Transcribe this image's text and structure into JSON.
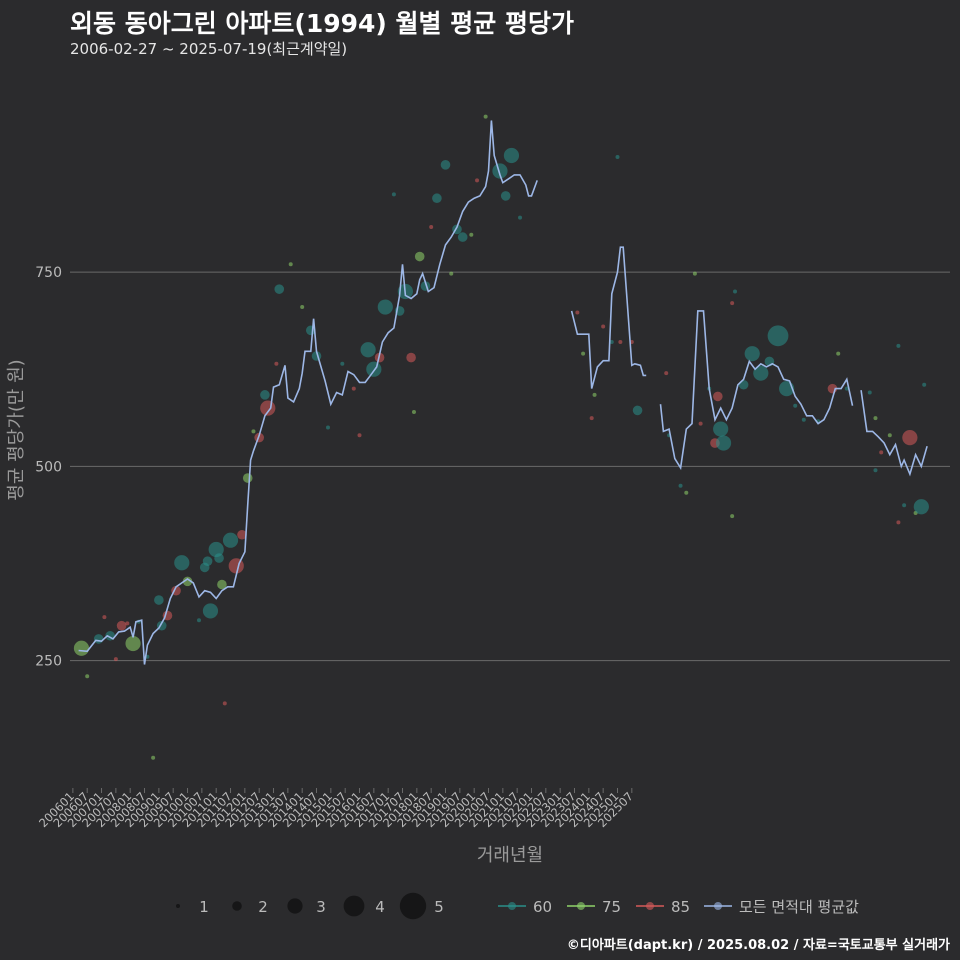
{
  "header": {
    "title": "외동 동아그린 아파트(1994) 월별 평균 평당가",
    "subtitle": "2006-02-27 ~ 2025-07-19(최근계약일)"
  },
  "footer": {
    "credit": "©디아파트(dapt.kr) / 2025.08.02 / 자료=국토교통부 실거래가"
  },
  "colors": {
    "background": "#2b2b2d",
    "grid": "#6a6a6a",
    "area_60": "#2a8f8a",
    "area_75": "#8fd36a",
    "area_85": "#d65a5a",
    "average_line": "#9db7e6",
    "text_dim": "#bbbbbb"
  },
  "chart_data": {
    "type": "line+scatter",
    "xlabel": "거래년월",
    "ylabel": "평균 평당가(만 원)",
    "ylim": [
      90,
      1010
    ],
    "yticks": [
      250,
      500,
      750
    ],
    "xticks": [
      "200601",
      "200607",
      "200701",
      "200707",
      "200801",
      "200807",
      "200901",
      "200907",
      "201001",
      "201007",
      "201101",
      "201107",
      "201201",
      "201207",
      "201301",
      "201307",
      "201401",
      "201407",
      "201501",
      "201507",
      "201601",
      "201607",
      "201701",
      "201707",
      "201801",
      "201807",
      "201901",
      "201907",
      "202001",
      "202007",
      "202101",
      "202107",
      "202201",
      "202207",
      "202301",
      "202307",
      "202401",
      "202407",
      "202501",
      "202507"
    ],
    "size_legend": {
      "title": "",
      "values": [
        1,
        2,
        3,
        4,
        5
      ]
    },
    "color_legend": [
      {
        "key": "60",
        "label": "60"
      },
      {
        "key": "75",
        "label": "75"
      },
      {
        "key": "85",
        "label": "85"
      },
      {
        "key": "avg",
        "label": "모든 면적대 평균값"
      }
    ],
    "average_line": [
      [
        2006.2,
        263
      ],
      [
        2006.5,
        262
      ],
      [
        2006.8,
        276
      ],
      [
        2007.0,
        275
      ],
      [
        2007.2,
        282
      ],
      [
        2007.4,
        278
      ],
      [
        2007.6,
        287
      ],
      [
        2007.8,
        288
      ],
      [
        2008.0,
        293
      ],
      [
        2008.1,
        280
      ],
      [
        2008.2,
        300
      ],
      [
        2008.4,
        302
      ],
      [
        2008.5,
        245
      ],
      [
        2008.6,
        270
      ],
      [
        2008.8,
        285
      ],
      [
        2009.0,
        292
      ],
      [
        2009.2,
        305
      ],
      [
        2009.4,
        330
      ],
      [
        2009.6,
        345
      ],
      [
        2009.8,
        350
      ],
      [
        2010.0,
        355
      ],
      [
        2010.2,
        350
      ],
      [
        2010.4,
        332
      ],
      [
        2010.6,
        340
      ],
      [
        2010.8,
        338
      ],
      [
        2011.0,
        330
      ],
      [
        2011.2,
        340
      ],
      [
        2011.4,
        345
      ],
      [
        2011.6,
        345
      ],
      [
        2011.8,
        375
      ],
      [
        2012.0,
        390
      ],
      [
        2012.1,
        450
      ],
      [
        2012.2,
        508
      ],
      [
        2012.3,
        520
      ],
      [
        2012.5,
        540
      ],
      [
        2012.7,
        565
      ],
      [
        2012.9,
        575
      ],
      [
        2013.0,
        602
      ],
      [
        2013.2,
        605
      ],
      [
        2013.4,
        630
      ],
      [
        2013.5,
        588
      ],
      [
        2013.7,
        583
      ],
      [
        2013.9,
        600
      ],
      [
        2014.0,
        620
      ],
      [
        2014.1,
        648
      ],
      [
        2014.3,
        648
      ],
      [
        2014.4,
        690
      ],
      [
        2014.5,
        648
      ],
      [
        2014.6,
        635
      ],
      [
        2014.8,
        610
      ],
      [
        2015.0,
        580
      ],
      [
        2015.2,
        595
      ],
      [
        2015.4,
        592
      ],
      [
        2015.6,
        622
      ],
      [
        2015.8,
        618
      ],
      [
        2016.0,
        608
      ],
      [
        2016.2,
        608
      ],
      [
        2016.4,
        618
      ],
      [
        2016.6,
        628
      ],
      [
        2016.8,
        660
      ],
      [
        2017.0,
        672
      ],
      [
        2017.2,
        678
      ],
      [
        2017.4,
        720
      ],
      [
        2017.5,
        760
      ],
      [
        2017.6,
        720
      ],
      [
        2017.8,
        716
      ],
      [
        2018.0,
        722
      ],
      [
        2018.1,
        740
      ],
      [
        2018.2,
        748
      ],
      [
        2018.4,
        725
      ],
      [
        2018.6,
        730
      ],
      [
        2018.8,
        760
      ],
      [
        2019.0,
        785
      ],
      [
        2019.2,
        795
      ],
      [
        2019.4,
        808
      ],
      [
        2019.6,
        828
      ],
      [
        2019.8,
        840
      ],
      [
        2020.0,
        845
      ],
      [
        2020.2,
        848
      ],
      [
        2020.4,
        860
      ],
      [
        2020.5,
        880
      ],
      [
        2020.6,
        945
      ],
      [
        2020.7,
        900
      ],
      [
        2020.9,
        875
      ],
      [
        2021.0,
        865
      ],
      [
        2021.2,
        870
      ],
      [
        2021.4,
        875
      ],
      [
        2021.6,
        875
      ],
      [
        2021.8,
        862
      ],
      [
        2021.9,
        848
      ],
      [
        2022.0,
        848
      ],
      [
        2022.2,
        868
      ]
    ],
    "average_line_b": [
      [
        2023.4,
        700
      ],
      [
        2023.6,
        670
      ],
      [
        2023.8,
        670
      ],
      [
        2024.0,
        670
      ],
      [
        2024.1,
        600
      ],
      [
        2024.3,
        628
      ],
      [
        2024.5,
        636
      ],
      [
        2024.7,
        636
      ],
      [
        2024.8,
        722
      ],
      [
        2025.0,
        750
      ],
      [
        2025.1,
        782
      ],
      [
        2025.2,
        782
      ],
      [
        2025.4,
        680
      ],
      [
        2025.5,
        630
      ],
      [
        2025.6,
        632
      ],
      [
        2025.8,
        630
      ],
      [
        2025.9,
        617
      ],
      [
        2026.0,
        617
      ]
    ],
    "average_line_c": [
      [
        2026.5,
        580
      ],
      [
        2026.6,
        545
      ],
      [
        2026.8,
        548
      ],
      [
        2027.0,
        510
      ],
      [
        2027.2,
        498
      ],
      [
        2027.4,
        548
      ],
      [
        2027.6,
        555
      ],
      [
        2027.8,
        700
      ],
      [
        2028.0,
        700
      ],
      [
        2028.2,
        600
      ],
      [
        2028.4,
        560
      ],
      [
        2028.6,
        575
      ],
      [
        2028.8,
        560
      ],
      [
        2029.0,
        575
      ],
      [
        2029.2,
        605
      ],
      [
        2029.4,
        612
      ],
      [
        2029.6,
        635
      ],
      [
        2029.8,
        625
      ],
      [
        2030.0,
        632
      ],
      [
        2030.2,
        628
      ],
      [
        2030.4,
        632
      ],
      [
        2030.6,
        628
      ],
      [
        2030.8,
        612
      ],
      [
        2031.0,
        610
      ],
      [
        2031.2,
        590
      ],
      [
        2031.4,
        580
      ],
      [
        2031.6,
        565
      ],
      [
        2031.8,
        565
      ],
      [
        2032.0,
        555
      ],
      [
        2032.2,
        560
      ],
      [
        2032.4,
        575
      ],
      [
        2032.6,
        600
      ],
      [
        2032.8,
        600
      ],
      [
        2033.0,
        612
      ],
      [
        2033.2,
        578
      ]
    ],
    "average_line_d": [
      [
        2033.5,
        598
      ],
      [
        2033.7,
        545
      ],
      [
        2033.9,
        545
      ],
      [
        2034.1,
        538
      ],
      [
        2034.3,
        530
      ],
      [
        2034.5,
        515
      ],
      [
        2034.7,
        528
      ],
      [
        2034.9,
        500
      ],
      [
        2035.0,
        508
      ],
      [
        2035.2,
        490
      ],
      [
        2035.4,
        515
      ],
      [
        2035.6,
        500
      ],
      [
        2035.8,
        526
      ]
    ],
    "points": [
      {
        "x": 2006.3,
        "y": 266,
        "s": 3,
        "a": "75"
      },
      {
        "x": 2006.5,
        "y": 230,
        "s": 1,
        "a": "75"
      },
      {
        "x": 2006.9,
        "y": 278,
        "s": 2,
        "a": "60"
      },
      {
        "x": 2007.1,
        "y": 306,
        "s": 1,
        "a": "85"
      },
      {
        "x": 2007.3,
        "y": 282,
        "s": 2,
        "a": "60"
      },
      {
        "x": 2007.5,
        "y": 252,
        "s": 1,
        "a": "85"
      },
      {
        "x": 2007.7,
        "y": 295,
        "s": 2,
        "a": "85"
      },
      {
        "x": 2007.9,
        "y": 298,
        "s": 1,
        "a": "85"
      },
      {
        "x": 2008.1,
        "y": 272,
        "s": 3,
        "a": "75"
      },
      {
        "x": 2008.3,
        "y": 300,
        "s": 1,
        "a": "60"
      },
      {
        "x": 2008.6,
        "y": 255,
        "s": 1,
        "a": "60"
      },
      {
        "x": 2008.8,
        "y": 125,
        "s": 1,
        "a": "75"
      },
      {
        "x": 2009.0,
        "y": 328,
        "s": 2,
        "a": "60"
      },
      {
        "x": 2009.1,
        "y": 295,
        "s": 2,
        "a": "60"
      },
      {
        "x": 2009.3,
        "y": 308,
        "s": 2,
        "a": "85"
      },
      {
        "x": 2009.6,
        "y": 340,
        "s": 2,
        "a": "85"
      },
      {
        "x": 2009.8,
        "y": 376,
        "s": 3,
        "a": "60"
      },
      {
        "x": 2010.0,
        "y": 352,
        "s": 2,
        "a": "75"
      },
      {
        "x": 2010.4,
        "y": 302,
        "s": 1,
        "a": "60"
      },
      {
        "x": 2010.6,
        "y": 370,
        "s": 2,
        "a": "60"
      },
      {
        "x": 2010.7,
        "y": 378,
        "s": 2,
        "a": "60"
      },
      {
        "x": 2010.8,
        "y": 314,
        "s": 3,
        "a": "60"
      },
      {
        "x": 2011.0,
        "y": 393,
        "s": 3,
        "a": "60"
      },
      {
        "x": 2011.1,
        "y": 382,
        "s": 2,
        "a": "60"
      },
      {
        "x": 2011.2,
        "y": 348,
        "s": 2,
        "a": "75"
      },
      {
        "x": 2011.3,
        "y": 195,
        "s": 1,
        "a": "85"
      },
      {
        "x": 2011.5,
        "y": 405,
        "s": 3,
        "a": "60"
      },
      {
        "x": 2011.7,
        "y": 372,
        "s": 3,
        "a": "85"
      },
      {
        "x": 2011.9,
        "y": 412,
        "s": 2,
        "a": "85"
      },
      {
        "x": 2012.1,
        "y": 485,
        "s": 2,
        "a": "75"
      },
      {
        "x": 2012.3,
        "y": 545,
        "s": 1,
        "a": "75"
      },
      {
        "x": 2012.5,
        "y": 537,
        "s": 2,
        "a": "85"
      },
      {
        "x": 2012.7,
        "y": 592,
        "s": 2,
        "a": "60"
      },
      {
        "x": 2012.8,
        "y": 575,
        "s": 3,
        "a": "85"
      },
      {
        "x": 2013.1,
        "y": 632,
        "s": 1,
        "a": "85"
      },
      {
        "x": 2013.2,
        "y": 728,
        "s": 2,
        "a": "60"
      },
      {
        "x": 2013.6,
        "y": 760,
        "s": 1,
        "a": "75"
      },
      {
        "x": 2014.0,
        "y": 705,
        "s": 1,
        "a": "75"
      },
      {
        "x": 2014.3,
        "y": 675,
        "s": 2,
        "a": "60"
      },
      {
        "x": 2014.5,
        "y": 642,
        "s": 2,
        "a": "60"
      },
      {
        "x": 2014.9,
        "y": 550,
        "s": 1,
        "a": "60"
      },
      {
        "x": 2015.4,
        "y": 632,
        "s": 1,
        "a": "60"
      },
      {
        "x": 2015.8,
        "y": 600,
        "s": 1,
        "a": "85"
      },
      {
        "x": 2016.0,
        "y": 540,
        "s": 1,
        "a": "85"
      },
      {
        "x": 2016.3,
        "y": 650,
        "s": 3,
        "a": "60"
      },
      {
        "x": 2016.5,
        "y": 625,
        "s": 3,
        "a": "60"
      },
      {
        "x": 2016.7,
        "y": 640,
        "s": 2,
        "a": "85"
      },
      {
        "x": 2016.9,
        "y": 705,
        "s": 3,
        "a": "60"
      },
      {
        "x": 2017.2,
        "y": 850,
        "s": 1,
        "a": "60"
      },
      {
        "x": 2017.4,
        "y": 700,
        "s": 2,
        "a": "60"
      },
      {
        "x": 2017.6,
        "y": 725,
        "s": 3,
        "a": "60"
      },
      {
        "x": 2017.8,
        "y": 640,
        "s": 2,
        "a": "85"
      },
      {
        "x": 2017.9,
        "y": 570,
        "s": 1,
        "a": "75"
      },
      {
        "x": 2018.1,
        "y": 770,
        "s": 2,
        "a": "75"
      },
      {
        "x": 2018.3,
        "y": 732,
        "s": 2,
        "a": "60"
      },
      {
        "x": 2018.5,
        "y": 808,
        "s": 1,
        "a": "85"
      },
      {
        "x": 2018.7,
        "y": 845,
        "s": 2,
        "a": "60"
      },
      {
        "x": 2019.0,
        "y": 888,
        "s": 2,
        "a": "60"
      },
      {
        "x": 2019.2,
        "y": 748,
        "s": 1,
        "a": "75"
      },
      {
        "x": 2019.4,
        "y": 805,
        "s": 2,
        "a": "60"
      },
      {
        "x": 2019.6,
        "y": 795,
        "s": 2,
        "a": "60"
      },
      {
        "x": 2019.9,
        "y": 798,
        "s": 1,
        "a": "75"
      },
      {
        "x": 2020.1,
        "y": 868,
        "s": 1,
        "a": "85"
      },
      {
        "x": 2020.4,
        "y": 950,
        "s": 1,
        "a": "75"
      },
      {
        "x": 2020.9,
        "y": 880,
        "s": 3,
        "a": "60"
      },
      {
        "x": 2021.1,
        "y": 848,
        "s": 2,
        "a": "60"
      },
      {
        "x": 2021.3,
        "y": 900,
        "s": 3,
        "a": "60"
      },
      {
        "x": 2021.6,
        "y": 820,
        "s": 1,
        "a": "60"
      },
      {
        "x": 2023.6,
        "y": 698,
        "s": 1,
        "a": "85"
      },
      {
        "x": 2023.8,
        "y": 645,
        "s": 1,
        "a": "75"
      },
      {
        "x": 2024.1,
        "y": 562,
        "s": 1,
        "a": "85"
      },
      {
        "x": 2024.2,
        "y": 592,
        "s": 1,
        "a": "75"
      },
      {
        "x": 2024.5,
        "y": 680,
        "s": 1,
        "a": "85"
      },
      {
        "x": 2024.8,
        "y": 660,
        "s": 1,
        "a": "60"
      },
      {
        "x": 2025.0,
        "y": 898,
        "s": 1,
        "a": "60"
      },
      {
        "x": 2025.1,
        "y": 660,
        "s": 1,
        "a": "85"
      },
      {
        "x": 2025.5,
        "y": 660,
        "s": 1,
        "a": "85"
      },
      {
        "x": 2025.7,
        "y": 572,
        "s": 2,
        "a": "60"
      },
      {
        "x": 2026.7,
        "y": 620,
        "s": 1,
        "a": "85"
      },
      {
        "x": 2026.8,
        "y": 540,
        "s": 1,
        "a": "60"
      },
      {
        "x": 2027.2,
        "y": 475,
        "s": 1,
        "a": "60"
      },
      {
        "x": 2027.4,
        "y": 466,
        "s": 1,
        "a": "75"
      },
      {
        "x": 2027.7,
        "y": 748,
        "s": 1,
        "a": "75"
      },
      {
        "x": 2027.9,
        "y": 555,
        "s": 1,
        "a": "85"
      },
      {
        "x": 2028.2,
        "y": 600,
        "s": 1,
        "a": "60"
      },
      {
        "x": 2028.4,
        "y": 530,
        "s": 2,
        "a": "85"
      },
      {
        "x": 2028.5,
        "y": 590,
        "s": 2,
        "a": "85"
      },
      {
        "x": 2028.6,
        "y": 548,
        "s": 3,
        "a": "60"
      },
      {
        "x": 2028.7,
        "y": 530,
        "s": 3,
        "a": "60"
      },
      {
        "x": 2029.0,
        "y": 710,
        "s": 1,
        "a": "85"
      },
      {
        "x": 2029.1,
        "y": 725,
        "s": 1,
        "a": "60"
      },
      {
        "x": 2029.0,
        "y": 436,
        "s": 1,
        "a": "75"
      },
      {
        "x": 2029.4,
        "y": 605,
        "s": 2,
        "a": "60"
      },
      {
        "x": 2029.7,
        "y": 645,
        "s": 3,
        "a": "60"
      },
      {
        "x": 2030.0,
        "y": 620,
        "s": 3,
        "a": "60"
      },
      {
        "x": 2030.3,
        "y": 635,
        "s": 2,
        "a": "60"
      },
      {
        "x": 2030.6,
        "y": 668,
        "s": 4,
        "a": "60"
      },
      {
        "x": 2030.9,
        "y": 600,
        "s": 3,
        "a": "60"
      },
      {
        "x": 2031.2,
        "y": 578,
        "s": 1,
        "a": "60"
      },
      {
        "x": 2031.5,
        "y": 560,
        "s": 1,
        "a": "60"
      },
      {
        "x": 2032.0,
        "y": 558,
        "s": 1,
        "a": "60"
      },
      {
        "x": 2032.5,
        "y": 600,
        "s": 2,
        "a": "85"
      },
      {
        "x": 2032.7,
        "y": 645,
        "s": 1,
        "a": "75"
      },
      {
        "x": 2033.0,
        "y": 600,
        "s": 1,
        "a": "60"
      },
      {
        "x": 2033.8,
        "y": 595,
        "s": 1,
        "a": "60"
      },
      {
        "x": 2034.0,
        "y": 562,
        "s": 1,
        "a": "75"
      },
      {
        "x": 2034.0,
        "y": 495,
        "s": 1,
        "a": "60"
      },
      {
        "x": 2034.2,
        "y": 518,
        "s": 1,
        "a": "85"
      },
      {
        "x": 2034.5,
        "y": 540,
        "s": 1,
        "a": "75"
      },
      {
        "x": 2034.8,
        "y": 655,
        "s": 1,
        "a": "60"
      },
      {
        "x": 2034.8,
        "y": 428,
        "s": 1,
        "a": "85"
      },
      {
        "x": 2035.0,
        "y": 450,
        "s": 1,
        "a": "60"
      },
      {
        "x": 2035.2,
        "y": 537,
        "s": 3,
        "a": "85"
      },
      {
        "x": 2035.4,
        "y": 440,
        "s": 1,
        "a": "75"
      },
      {
        "x": 2035.6,
        "y": 448,
        "s": 3,
        "a": "60"
      },
      {
        "x": 2035.7,
        "y": 605,
        "s": 1,
        "a": "60"
      }
    ]
  }
}
